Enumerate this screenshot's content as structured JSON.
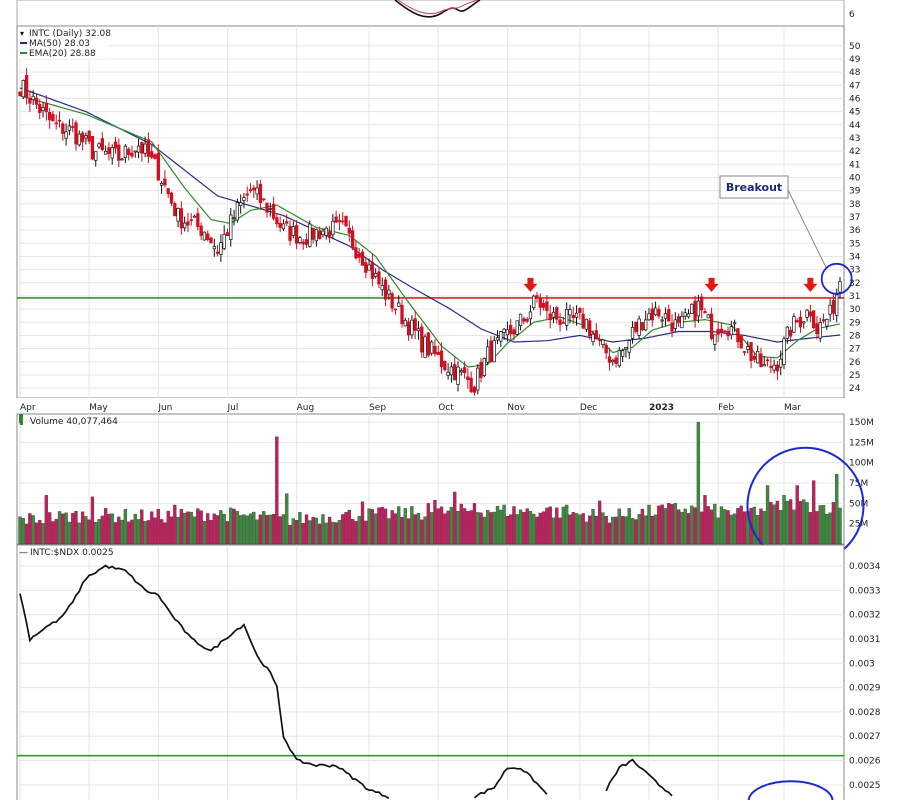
{
  "chart_data": [
    {
      "type": "candlestick",
      "panel": "price",
      "title": "INTC (Daily) 32.08",
      "legend": [
        {
          "label": "MA(50) 28.03",
          "color": "#2b2b8c"
        },
        {
          "label": "EMA(20) 28.88",
          "color": "#2f8a2f"
        }
      ],
      "yticks": [
        24,
        25,
        26,
        27,
        28,
        29,
        30,
        31,
        32,
        33,
        34,
        35,
        36,
        37,
        38,
        39,
        40,
        41,
        42,
        43,
        44,
        45,
        46,
        47,
        48,
        49,
        50
      ],
      "ylim": [
        23.4,
        51.2
      ],
      "x_months": [
        {
          "label": "Apr",
          "x": 0
        },
        {
          "label": "May",
          "x": 21
        },
        {
          "label": "Jun",
          "x": 42
        },
        {
          "label": "Jul",
          "x": 63
        },
        {
          "label": "Aug",
          "x": 84
        },
        {
          "label": "Sep",
          "x": 106
        },
        {
          "label": "Oct",
          "x": 127
        },
        {
          "label": "Nov",
          "x": 148
        },
        {
          "label": "Dec",
          "x": 170
        },
        {
          "label": "2023",
          "x": 191
        },
        {
          "label": "Feb",
          "x": 212
        },
        {
          "label": "Mar",
          "x": 232
        }
      ],
      "close_anchors": [
        [
          0,
          47.0
        ],
        [
          5,
          45.5
        ],
        [
          10,
          44.0
        ],
        [
          16,
          43.5
        ],
        [
          22,
          42.0
        ],
        [
          30,
          41.5
        ],
        [
          36,
          42.5
        ],
        [
          42,
          40.5
        ],
        [
          48,
          37.0
        ],
        [
          56,
          36.0
        ],
        [
          60,
          34.5
        ],
        [
          66,
          37.5
        ],
        [
          70,
          39.0
        ],
        [
          76,
          37.5
        ],
        [
          80,
          36.0
        ],
        [
          86,
          35.5
        ],
        [
          92,
          36.0
        ],
        [
          98,
          36.0
        ],
        [
          104,
          34.0
        ],
        [
          110,
          31.5
        ],
        [
          116,
          29.5
        ],
        [
          122,
          27.5
        ],
        [
          128,
          26.0
        ],
        [
          134,
          25.0
        ],
        [
          138,
          24.3
        ],
        [
          142,
          26.5
        ],
        [
          146,
          27.5
        ],
        [
          150,
          28.5
        ],
        [
          154,
          29.5
        ],
        [
          157,
          30.8
        ],
        [
          160,
          29.5
        ],
        [
          166,
          29.2
        ],
        [
          172,
          29.0
        ],
        [
          176,
          27.2
        ],
        [
          180,
          26.2
        ],
        [
          184,
          27.0
        ],
        [
          186,
          28.2
        ],
        [
          190,
          29.5
        ],
        [
          194,
          29.8
        ],
        [
          198,
          29.0
        ],
        [
          200,
          28.5
        ],
        [
          206,
          30.2
        ],
        [
          210,
          28.5
        ],
        [
          214,
          29.0
        ],
        [
          218,
          28.0
        ],
        [
          222,
          26.5
        ],
        [
          226,
          25.5
        ],
        [
          230,
          26.0
        ],
        [
          234,
          28.5
        ],
        [
          238,
          29.5
        ],
        [
          240,
          30.0
        ],
        [
          242,
          28.5
        ],
        [
          246,
          29.5
        ],
        [
          249,
          32.08
        ]
      ],
      "ma50": [
        [
          0,
          46.8
        ],
        [
          20,
          45.0
        ],
        [
          40,
          42.5
        ],
        [
          60,
          38.6
        ],
        [
          80,
          37.1
        ],
        [
          100,
          34.8
        ],
        [
          110,
          33.0
        ],
        [
          120,
          31.5
        ],
        [
          130,
          30.1
        ],
        [
          140,
          28.5
        ],
        [
          150,
          27.5
        ],
        [
          160,
          27.6
        ],
        [
          170,
          28.0
        ],
        [
          180,
          27.5
        ],
        [
          190,
          27.8
        ],
        [
          200,
          28.3
        ],
        [
          210,
          28.3
        ],
        [
          220,
          28.0
        ],
        [
          230,
          27.5
        ],
        [
          240,
          27.8
        ],
        [
          249,
          28.03
        ]
      ],
      "ema20": [
        [
          0,
          46.2
        ],
        [
          20,
          44.8
        ],
        [
          40,
          42.7
        ],
        [
          50,
          39.2
        ],
        [
          58,
          36.8
        ],
        [
          64,
          36.5
        ],
        [
          70,
          37.5
        ],
        [
          78,
          37.9
        ],
        [
          90,
          36.2
        ],
        [
          100,
          35.6
        ],
        [
          108,
          34.0
        ],
        [
          118,
          30.5
        ],
        [
          128,
          27.2
        ],
        [
          136,
          25.6
        ],
        [
          142,
          25.8
        ],
        [
          148,
          27.4
        ],
        [
          156,
          29.0
        ],
        [
          164,
          29.4
        ],
        [
          172,
          28.7
        ],
        [
          180,
          26.7
        ],
        [
          186,
          27.1
        ],
        [
          192,
          28.4
        ],
        [
          200,
          29.0
        ],
        [
          208,
          29.2
        ],
        [
          216,
          28.8
        ],
        [
          224,
          26.4
        ],
        [
          230,
          26.3
        ],
        [
          236,
          27.6
        ],
        [
          242,
          28.5
        ],
        [
          249,
          28.88
        ]
      ],
      "horizontal_lines": [
        {
          "price": 30.85,
          "color": "#2e9a2e",
          "from": 0,
          "to": 111
        },
        {
          "price": 30.85,
          "color": "#e02020",
          "from": 111,
          "to": 249
        }
      ],
      "arrows": [
        155,
        210,
        240
      ],
      "annotation": {
        "label": "Breakout",
        "x": 245,
        "y": 35.8
      },
      "circle": {
        "x": 248,
        "y": 32.3
      }
    },
    {
      "type": "bar",
      "panel": "volume",
      "title": "Volume 40,077,464",
      "yticks": [
        {
          "label": "25M",
          "v": 25
        },
        {
          "label": "50M",
          "v": 50
        },
        {
          "label": "75M",
          "v": 75
        },
        {
          "label": "100M",
          "v": 100
        },
        {
          "label": "125M",
          "v": 125
        },
        {
          "label": "150M",
          "v": 150
        }
      ],
      "ylim": [
        0,
        155
      ],
      "volume_anchors": [
        [
          0,
          28
        ],
        [
          20,
          34
        ],
        [
          40,
          32
        ],
        [
          60,
          36
        ],
        [
          80,
          28
        ],
        [
          100,
          34
        ],
        [
          120,
          36
        ],
        [
          140,
          40
        ],
        [
          160,
          38
        ],
        [
          180,
          32
        ],
        [
          200,
          42
        ],
        [
          220,
          36
        ],
        [
          235,
          48
        ],
        [
          249,
          42
        ]
      ],
      "spikes": [
        [
          8,
          60
        ],
        [
          22,
          58
        ],
        [
          47,
          48
        ],
        [
          78,
          132
        ],
        [
          81,
          62
        ],
        [
          104,
          52
        ],
        [
          124,
          50
        ],
        [
          126,
          54
        ],
        [
          132,
          64
        ],
        [
          138,
          50
        ],
        [
          161,
          46
        ],
        [
          166,
          48
        ],
        [
          176,
          53
        ],
        [
          185,
          44
        ],
        [
          194,
          47
        ],
        [
          206,
          150
        ],
        [
          208,
          60
        ],
        [
          222,
          44
        ],
        [
          227,
          72
        ],
        [
          232,
          60
        ],
        [
          236,
          72
        ],
        [
          241,
          78
        ],
        [
          248,
          86
        ]
      ],
      "circle": {
        "x": 237,
        "v": 52
      }
    },
    {
      "type": "line",
      "panel": "relative",
      "title": "INTC:$NDX 0.0025",
      "yticks": [
        0.0025,
        0.0026,
        0.0027,
        0.0028,
        0.0029,
        0.003,
        0.0031,
        0.0032,
        0.0033,
        0.0034
      ],
      "ylim": [
        0.00245,
        0.00341
      ],
      "anchors": [
        [
          0,
          0.00329
        ],
        [
          3,
          0.0031
        ],
        [
          8,
          0.00315
        ],
        [
          12,
          0.00318
        ],
        [
          16,
          0.00325
        ],
        [
          20,
          0.00335
        ],
        [
          26,
          0.0034
        ],
        [
          32,
          0.00338
        ],
        [
          38,
          0.0033
        ],
        [
          42,
          0.00328
        ],
        [
          46,
          0.0032
        ],
        [
          52,
          0.0031
        ],
        [
          58,
          0.00305
        ],
        [
          64,
          0.00312
        ],
        [
          68,
          0.00316
        ],
        [
          72,
          0.00303
        ],
        [
          76,
          0.00296
        ],
        [
          78,
          0.0029
        ],
        [
          80,
          0.0027
        ],
        [
          84,
          0.0026
        ],
        [
          90,
          0.00258
        ],
        [
          96,
          0.00258
        ],
        [
          100,
          0.00254
        ],
        [
          106,
          0.00248
        ],
        [
          112,
          0.00245
        ]
      ],
      "right_anchors": [
        [
          138,
          0.00245
        ],
        [
          144,
          0.00249
        ],
        [
          148,
          0.00257
        ],
        [
          152,
          0.00257
        ],
        [
          156,
          0.00252
        ],
        [
          160,
          0.00246
        ]
      ],
      "right_anchors2": [
        [
          178,
          0.00248
        ],
        [
          182,
          0.00257
        ],
        [
          186,
          0.0026
        ],
        [
          190,
          0.00255
        ],
        [
          194,
          0.0025
        ],
        [
          198,
          0.00246
        ]
      ],
      "green_line": 0.00262,
      "circle": {
        "x": 234,
        "y": 0.00249
      }
    }
  ]
}
